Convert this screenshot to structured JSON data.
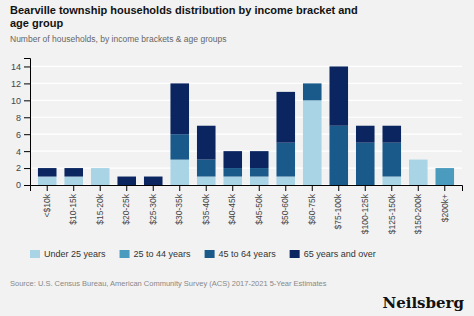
{
  "chart_data": {
    "type": "bar",
    "stacked": true,
    "title": "Bearville township households distribution by income bracket and\nage group",
    "subtitle": "Number of households, by income brackets & age groups",
    "source": "Source: U.S. Census Bureau, American Community Survey (ACS) 2017-2021 5-Year Estimates",
    "annotations": [
      "Neilsberg"
    ],
    "categories": [
      "<$10k",
      "$10-15k",
      "$15-20k",
      "$20-25k",
      "$25-30k",
      "$30-35k",
      "$35-40k",
      "$40-45k",
      "$45-50k",
      "$50-60k",
      "$60-75k",
      "$75-100k",
      "$100-125k",
      "$125-150k",
      "$150-200k",
      "$200k+"
    ],
    "series": [
      {
        "name": "Under 25 years",
        "color": "#a8d4e6",
        "values": [
          1,
          1,
          2,
          0,
          0,
          3,
          1,
          1,
          1,
          1,
          10,
          0,
          0,
          1,
          3,
          0
        ]
      },
      {
        "name": "25 to 44 years",
        "color": "#4a9bbe",
        "values": [
          0,
          0,
          0,
          0,
          0,
          0,
          0,
          0,
          0,
          0,
          0,
          0,
          0,
          0,
          0,
          2
        ]
      },
      {
        "name": "45 to 64 years",
        "color": "#1a5a8a",
        "values": [
          0,
          0,
          0,
          0,
          0,
          3,
          2,
          1,
          1,
          4,
          2,
          7,
          5,
          4,
          0,
          0
        ]
      },
      {
        "name": "65 years and over",
        "color": "#0a2560",
        "values": [
          1,
          1,
          0,
          1,
          1,
          6,
          4,
          2,
          2,
          6,
          0,
          7,
          2,
          2,
          0,
          0
        ]
      }
    ],
    "ylim": [
      0,
      15
    ],
    "yticks": [
      0,
      2,
      4,
      6,
      8,
      10,
      12,
      14
    ],
    "grid": true,
    "legend": "bottom"
  }
}
